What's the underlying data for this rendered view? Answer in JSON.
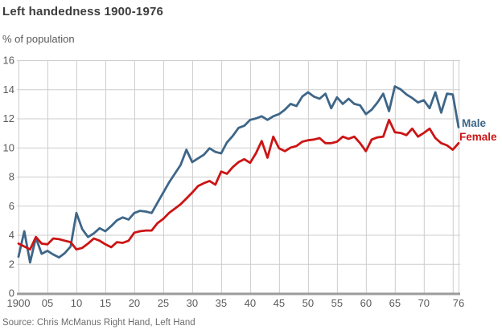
{
  "title": "Left handedness 1900-1976",
  "y_axis_label": "% of population",
  "source": "Source: Chris McManus Right Hand, Left Hand",
  "colors": {
    "male_line": "#3e6688",
    "female_line": "#cc1414",
    "grid": "#cdcdcd",
    "axis": "#9b9b9b",
    "tick_text": "#5a5a5a"
  },
  "chart_data": {
    "type": "line",
    "title": "Left handedness 1900-1976",
    "subtitle": "% of population",
    "xlabel": "",
    "ylabel": "% of population",
    "xlim": [
      1900,
      1976
    ],
    "ylim": [
      0,
      16
    ],
    "grid": true,
    "legend_position": "right-of-line-ends",
    "y_ticks": [
      0,
      2,
      4,
      6,
      8,
      10,
      12,
      14,
      16
    ],
    "x_gridline_years": [
      1900,
      1905,
      1910,
      1915,
      1920,
      1925,
      1930,
      1935,
      1940,
      1945,
      1950,
      1955,
      1960,
      1965,
      1970,
      1975,
      1976
    ],
    "x_ticks": [
      {
        "year": 1900,
        "label": "1900"
      },
      {
        "year": 1905,
        "label": "05"
      },
      {
        "year": 1910,
        "label": "10"
      },
      {
        "year": 1915,
        "label": "15"
      },
      {
        "year": 1920,
        "label": "20"
      },
      {
        "year": 1925,
        "label": "25"
      },
      {
        "year": 1930,
        "label": "30"
      },
      {
        "year": 1935,
        "label": "35"
      },
      {
        "year": 1940,
        "label": "40"
      },
      {
        "year": 1945,
        "label": "45"
      },
      {
        "year": 1950,
        "label": "50"
      },
      {
        "year": 1955,
        "label": "55"
      },
      {
        "year": 1960,
        "label": "60"
      },
      {
        "year": 1965,
        "label": "65"
      },
      {
        "year": 1970,
        "label": "70"
      },
      {
        "year": 1976,
        "label": "76"
      }
    ],
    "x": [
      1900,
      1901,
      1902,
      1903,
      1904,
      1905,
      1906,
      1907,
      1908,
      1909,
      1910,
      1911,
      1912,
      1913,
      1914,
      1915,
      1916,
      1917,
      1918,
      1919,
      1920,
      1921,
      1922,
      1923,
      1924,
      1925,
      1926,
      1927,
      1928,
      1929,
      1930,
      1931,
      1932,
      1933,
      1934,
      1935,
      1936,
      1937,
      1938,
      1939,
      1940,
      1941,
      1942,
      1943,
      1944,
      1945,
      1946,
      1947,
      1948,
      1949,
      1950,
      1951,
      1952,
      1953,
      1954,
      1955,
      1956,
      1957,
      1958,
      1959,
      1960,
      1961,
      1962,
      1963,
      1964,
      1965,
      1966,
      1967,
      1968,
      1969,
      1970,
      1971,
      1972,
      1973,
      1974,
      1975,
      1976
    ],
    "series": [
      {
        "name": "Male",
        "color": "#3e6688",
        "values": [
          2.5,
          4.25,
          2.1,
          3.8,
          2.7,
          2.9,
          2.65,
          2.45,
          2.75,
          3.2,
          5.5,
          4.4,
          3.85,
          4.1,
          4.45,
          4.25,
          4.6,
          5.0,
          5.2,
          5.05,
          5.5,
          5.65,
          5.6,
          5.5,
          6.2,
          6.9,
          7.6,
          8.2,
          8.8,
          9.85,
          9.0,
          9.25,
          9.5,
          9.95,
          9.7,
          9.6,
          10.35,
          10.8,
          11.35,
          11.5,
          11.9,
          12.0,
          12.15,
          11.9,
          12.15,
          12.3,
          12.6,
          13.0,
          12.85,
          13.5,
          13.8,
          13.5,
          13.35,
          13.7,
          12.7,
          13.45,
          13.0,
          13.35,
          13.0,
          12.9,
          12.3,
          12.6,
          13.1,
          13.7,
          12.5,
          14.2,
          14.0,
          13.65,
          13.4,
          13.1,
          13.25,
          12.7,
          13.8,
          12.4,
          13.7,
          13.65,
          11.4
        ]
      },
      {
        "name": "Female",
        "color": "#cc1414",
        "values": [
          3.4,
          3.2,
          3.0,
          3.85,
          3.4,
          3.35,
          3.75,
          3.7,
          3.6,
          3.5,
          3.0,
          3.1,
          3.4,
          3.75,
          3.6,
          3.35,
          3.15,
          3.5,
          3.45,
          3.6,
          4.15,
          4.25,
          4.3,
          4.3,
          4.8,
          5.1,
          5.5,
          5.8,
          6.1,
          6.5,
          6.9,
          7.35,
          7.55,
          7.7,
          7.45,
          8.35,
          8.2,
          8.65,
          9.0,
          9.2,
          8.95,
          9.6,
          10.45,
          9.3,
          10.75,
          9.95,
          9.75,
          10.0,
          10.1,
          10.4,
          10.5,
          10.55,
          10.65,
          10.3,
          10.3,
          10.4,
          10.75,
          10.6,
          10.75,
          10.3,
          9.75,
          10.55,
          10.7,
          10.75,
          11.9,
          11.05,
          11.0,
          10.85,
          11.3,
          10.75,
          11.0,
          11.3,
          10.65,
          10.3,
          10.15,
          9.85,
          10.3
        ]
      }
    ]
  }
}
